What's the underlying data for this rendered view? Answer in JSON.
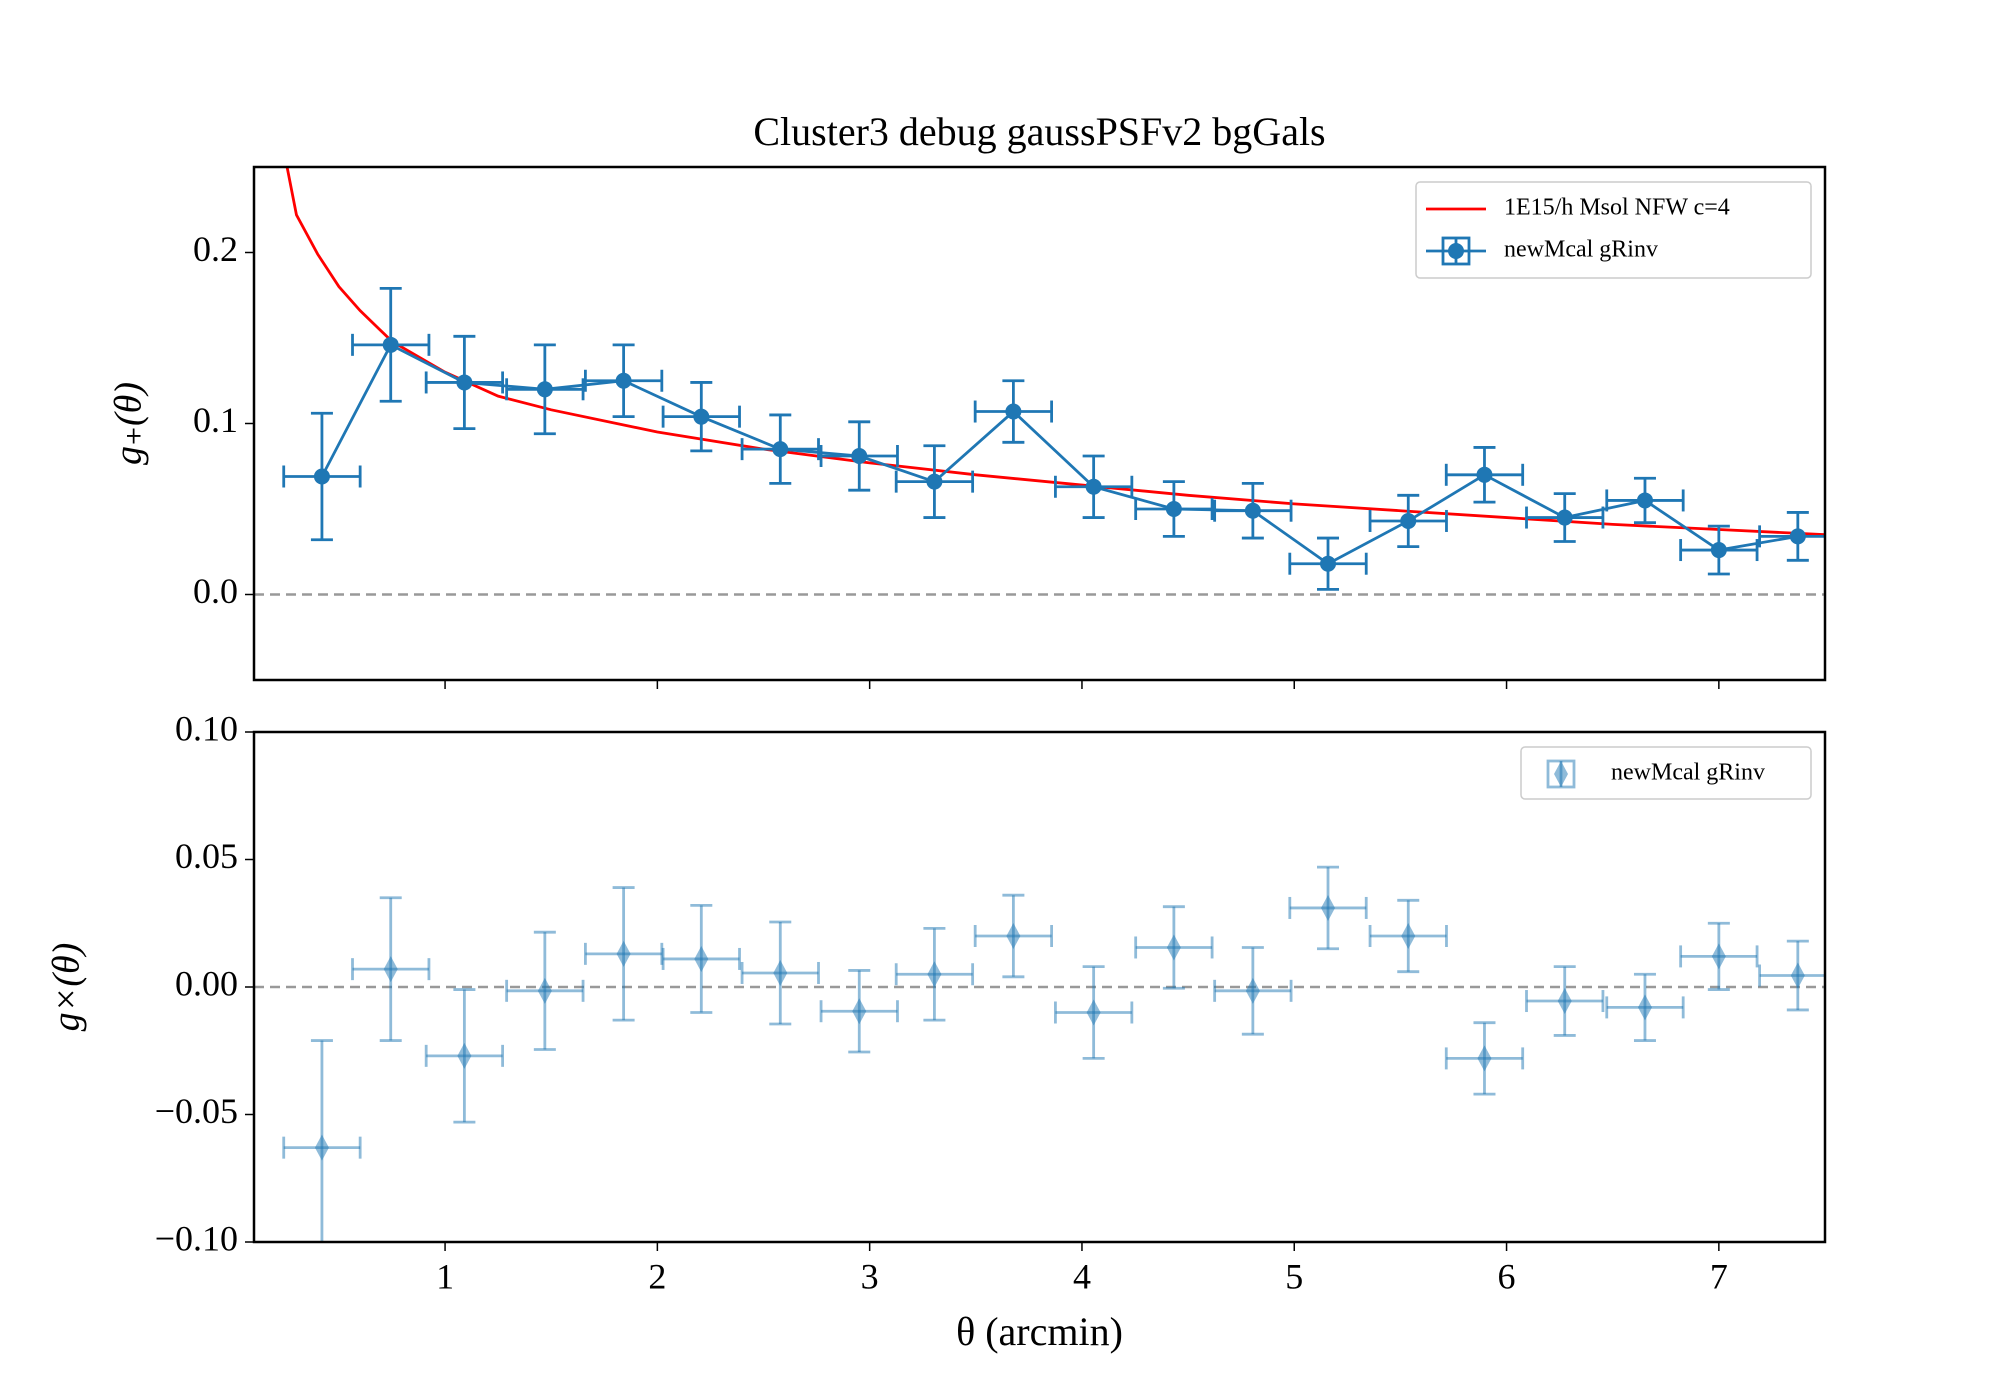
{
  "chart_data": [
    {
      "type": "errorbar",
      "title": "Cluster3 debug gaussPSFv2 bgGals",
      "ylabel": "g₊(θ)",
      "xlim": [
        0.1,
        7.5
      ],
      "ylim": [
        -0.05,
        0.25
      ],
      "xticks": [
        1,
        2,
        3,
        4,
        5,
        6,
        7
      ],
      "yticks": [
        {
          "value": 0,
          "label": "0.0"
        },
        0.1,
        0.2
      ],
      "hline": 0,
      "legend": "upper right",
      "series": [
        {
          "name": "1E15/h Msol NFW c=4",
          "color": "#ff0000",
          "style": "line",
          "x": [
            0.24,
            0.3,
            0.4,
            0.5,
            0.6,
            0.75,
            1.0,
            1.25,
            1.5,
            2,
            2.5,
            3,
            3.5,
            4,
            4.5,
            5,
            5.5,
            6,
            6.5,
            7,
            7.5
          ],
          "values": [
            0.26,
            0.222,
            0.199,
            0.18,
            0.166,
            0.148,
            0.13,
            0.116,
            0.108,
            0.095,
            0.085,
            0.077,
            0.07,
            0.064,
            0.058,
            0.053,
            0.049,
            0.045,
            0.041,
            0.038,
            0.035
          ]
        },
        {
          "name": "newMcal gRinv",
          "color": "#1f77b4",
          "style": "errorbar",
          "marker": "circle",
          "connect": true,
          "x": [
            0.42,
            0.744,
            1.091,
            1.47,
            1.841,
            2.207,
            2.579,
            2.951,
            3.305,
            3.677,
            4.055,
            4.433,
            4.805,
            5.159,
            5.537,
            5.896,
            6.274,
            6.652,
            7.0,
            7.372
          ],
          "values": [
            0.069,
            0.146,
            0.124,
            0.12,
            0.125,
            0.104,
            0.085,
            0.081,
            0.066,
            0.107,
            0.063,
            0.05,
            0.049,
            0.018,
            0.043,
            0.07,
            0.045,
            0.055,
            0.026,
            0.034
          ],
          "yerr": [
            0.037,
            0.033,
            0.027,
            0.026,
            0.021,
            0.02,
            0.02,
            0.02,
            0.021,
            0.018,
            0.018,
            0.016,
            0.016,
            0.015,
            0.015,
            0.016,
            0.014,
            0.013,
            0.014,
            0.014
          ],
          "xerr": [
            0.18,
            0.18,
            0.18,
            0.18,
            0.18,
            0.18,
            0.18,
            0.18,
            0.18,
            0.18,
            0.18,
            0.18,
            0.18,
            0.18,
            0.18,
            0.18,
            0.18,
            0.18,
            0.18,
            0.18
          ]
        }
      ]
    },
    {
      "type": "errorbar",
      "ylabel": "g×(θ)",
      "xlabel": "θ (arcmin)",
      "xlim": [
        0.1,
        7.5
      ],
      "ylim": [
        -0.1,
        0.1
      ],
      "xticks": [
        1,
        2,
        3,
        4,
        5,
        6,
        7
      ],
      "yticks": [
        {
          "value": -0.1,
          "label": "−0.10"
        },
        {
          "value": -0.05,
          "label": "−0.05"
        },
        {
          "value": 0,
          "label": "0.00"
        },
        0.05,
        {
          "value": 0.1,
          "label": "0.10"
        }
      ],
      "hline": 0,
      "legend": "upper right",
      "series": [
        {
          "name": "newMcal gRinv",
          "color": "#1f77b4",
          "style": "errorbar",
          "marker": "diamond",
          "connect": false,
          "alpha": 0.5,
          "x": [
            0.42,
            0.744,
            1.091,
            1.47,
            1.841,
            2.207,
            2.579,
            2.951,
            3.305,
            3.677,
            4.055,
            4.433,
            4.805,
            5.159,
            5.537,
            5.896,
            6.274,
            6.652,
            7.0,
            7.372
          ],
          "values": [
            -0.063,
            0.007,
            -0.027,
            -0.0015,
            0.013,
            0.011,
            0.0055,
            -0.0095,
            0.005,
            0.02,
            -0.01,
            0.0155,
            -0.0015,
            0.031,
            0.02,
            -0.028,
            -0.0055,
            -0.008,
            0.012,
            0.0045
          ],
          "yerr": [
            0.042,
            0.028,
            0.026,
            0.023,
            0.026,
            0.021,
            0.02,
            0.016,
            0.018,
            0.016,
            0.018,
            0.016,
            0.017,
            0.016,
            0.014,
            0.014,
            0.0135,
            0.013,
            0.013,
            0.0135
          ],
          "xerr": [
            0.18,
            0.18,
            0.18,
            0.18,
            0.18,
            0.18,
            0.18,
            0.18,
            0.18,
            0.18,
            0.18,
            0.18,
            0.18,
            0.18,
            0.18,
            0.18,
            0.18,
            0.18,
            0.18,
            0.18
          ]
        }
      ]
    }
  ]
}
